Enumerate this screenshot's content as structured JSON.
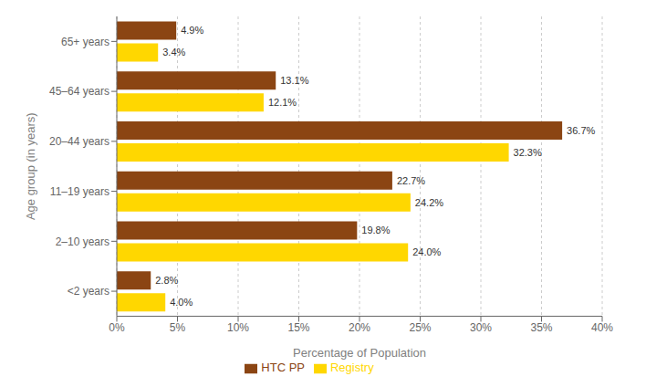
{
  "chart_data": {
    "type": "bar",
    "orientation": "horizontal",
    "categories": [
      "65+ years",
      "45–64 years",
      "20–44 years",
      "11–19 years",
      "2–10 years",
      "<2 years"
    ],
    "series": [
      {
        "name": "HTC PP",
        "color": "#8B4513",
        "values": [
          4.9,
          13.1,
          36.7,
          22.7,
          19.8,
          2.8
        ],
        "value_labels": [
          "4.9%",
          "13.1%",
          "36.7%",
          "22.7%",
          "19.8%",
          "2.8%"
        ]
      },
      {
        "name": "Registry",
        "color": "#FFD700",
        "values": [
          3.4,
          12.1,
          32.3,
          24.2,
          24.0,
          4.0
        ],
        "value_labels": [
          "3.4%",
          "12.1%",
          "32.3%",
          "24.2%",
          "24.0%",
          "4.0%"
        ]
      }
    ],
    "xlabel": "Percentage of Population",
    "ylabel": "Age group (in years)",
    "xlim": [
      0,
      40
    ],
    "xticks": [
      {
        "value": 0,
        "label": "0%"
      },
      {
        "value": 5,
        "label": "5%"
      },
      {
        "value": 10,
        "label": "10%"
      },
      {
        "value": 15,
        "label": "15%"
      },
      {
        "value": 20,
        "label": "20%"
      },
      {
        "value": 25,
        "label": "25%"
      },
      {
        "value": 30,
        "label": "30%"
      },
      {
        "value": 35,
        "label": "35%"
      },
      {
        "value": 40,
        "label": "40%"
      }
    ],
    "grid": true,
    "legend": "bottom",
    "data_labels": true
  }
}
